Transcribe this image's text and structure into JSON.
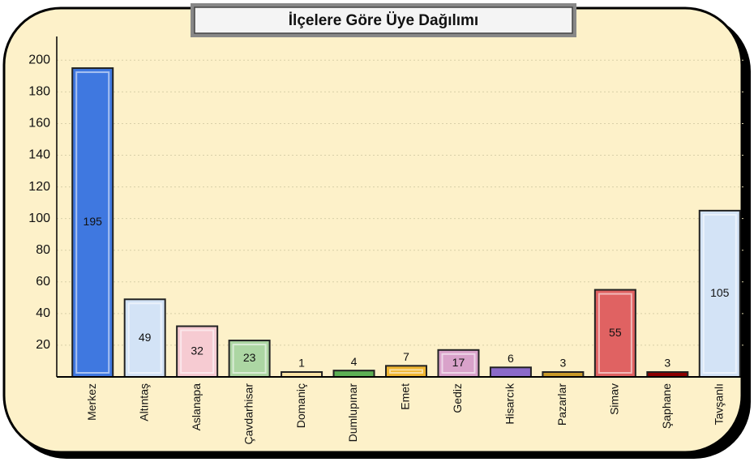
{
  "chart_data": {
    "type": "bar",
    "title": "İlçelere Göre Üye Dağılımı",
    "categories": [
      "Merkez",
      "Altıntaş",
      "Aslanapa",
      "Çavdarhisar",
      "Domaniç",
      "Dumlupınar",
      "Emet",
      "Gediz",
      "Hisarcık",
      "Pazarlar",
      "Simav",
      "Şaphane",
      "Tavşanlı"
    ],
    "values": [
      195,
      49,
      32,
      23,
      1,
      4,
      7,
      17,
      6,
      3,
      55,
      3,
      105
    ],
    "colors": [
      "#3f78e0",
      "#d3e3f6",
      "#f6cbd2",
      "#acd6a3",
      "#f9e4a4",
      "#5cb054",
      "#f0b630",
      "#d9a2ca",
      "#8a6ac8",
      "#c89a28",
      "#e06262",
      "#8c0000",
      "#d3e3f6"
    ],
    "ylim": [
      0,
      215
    ],
    "yticks": [
      20,
      40,
      60,
      80,
      100,
      120,
      140,
      160,
      180,
      200
    ],
    "grid": true
  }
}
